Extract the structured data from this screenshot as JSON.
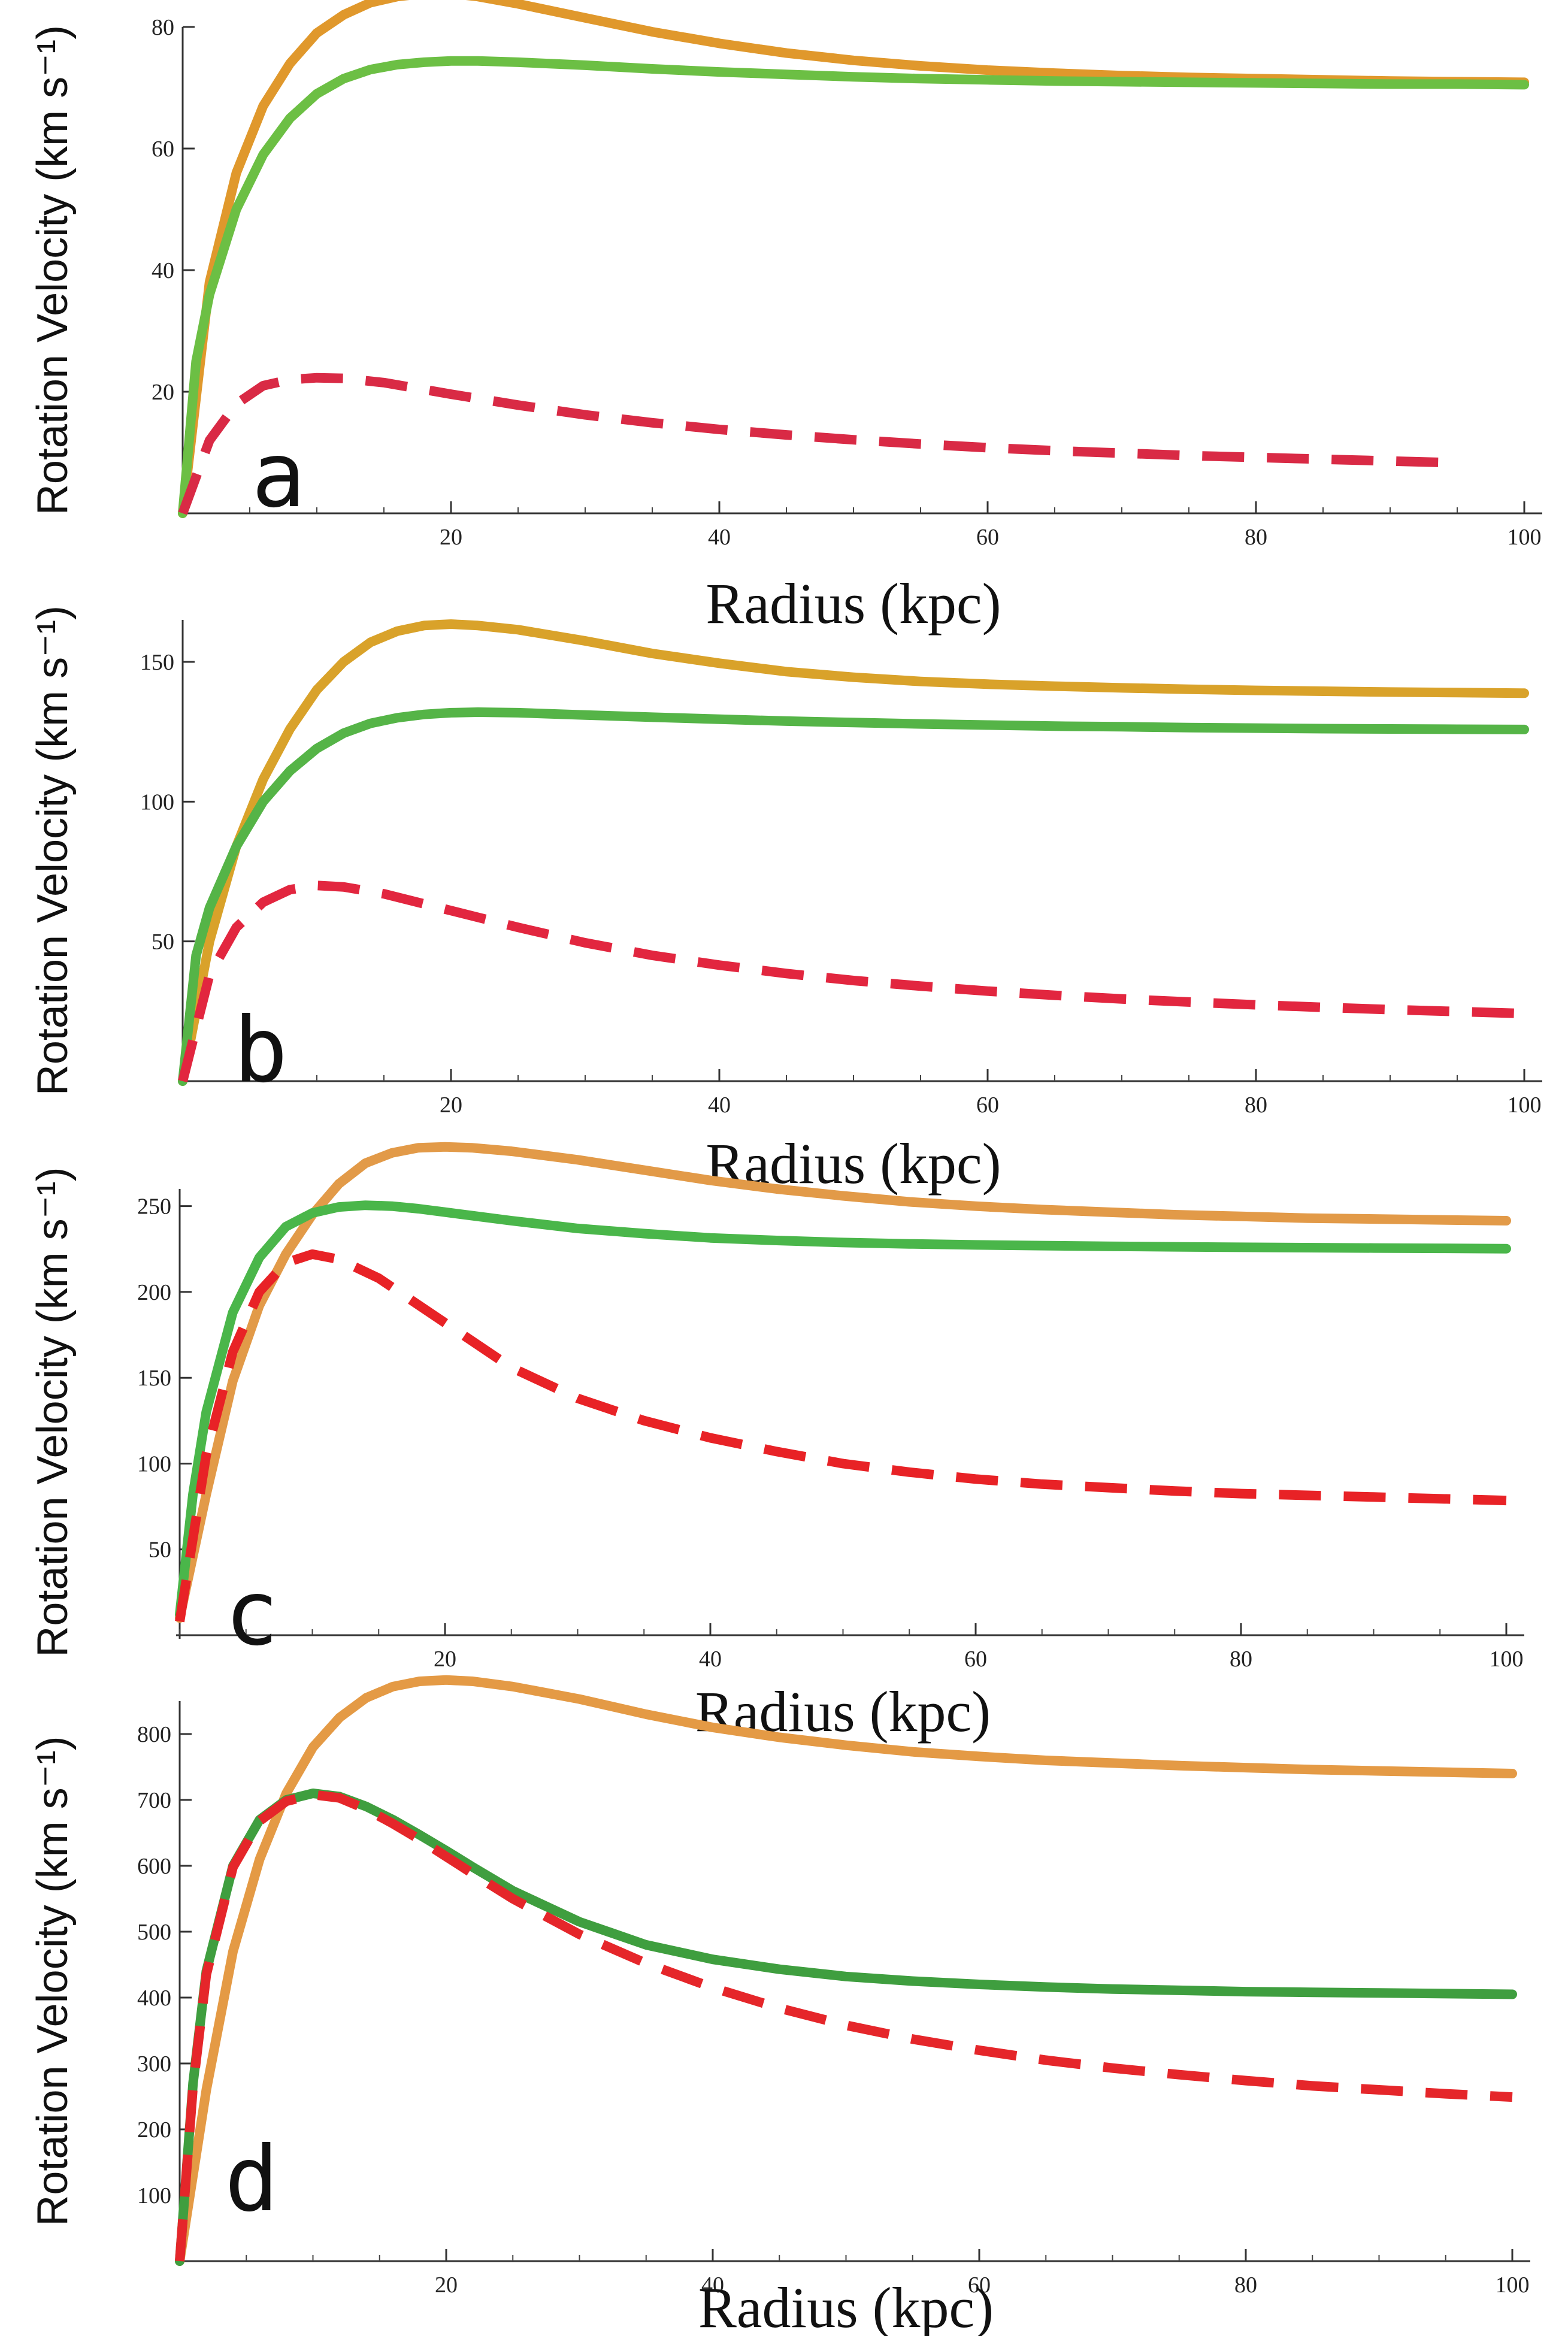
{
  "chart_data": [
    {
      "type": "line",
      "panel_label": "a",
      "xlabel": "Radius (kpc)",
      "ylabel": "Rotation Velocity (km s⁻¹)",
      "xlim": [
        0,
        100
      ],
      "ylim": [
        0,
        80
      ],
      "xticks": [
        20,
        40,
        60,
        80,
        100
      ],
      "yticks": [
        20,
        40,
        60,
        80
      ],
      "grid": false,
      "series": [
        {
          "color": "#e0982c",
          "style": "solid",
          "x": [
            0,
            2,
            4,
            6,
            8,
            10,
            12,
            14,
            16,
            18,
            20,
            22,
            25,
            30,
            35,
            40,
            45,
            50,
            55,
            60,
            65,
            70,
            75,
            80,
            85,
            90,
            95,
            100
          ],
          "y": [
            0,
            38,
            56,
            67,
            74,
            79,
            82,
            84,
            85,
            85.5,
            85.5,
            85,
            83.8,
            81.5,
            79.2,
            77.3,
            75.7,
            74.5,
            73.6,
            72.9,
            72.4,
            72.0,
            71.7,
            71.5,
            71.3,
            71.1,
            71.0,
            70.9
          ]
        },
        {
          "color": "#6cbf44",
          "style": "solid",
          "x": [
            0,
            1,
            2,
            4,
            6,
            8,
            10,
            12,
            14,
            16,
            18,
            20,
            22,
            25,
            30,
            35,
            40,
            45,
            50,
            55,
            60,
            65,
            70,
            75,
            80,
            85,
            90,
            95,
            100
          ],
          "y": [
            0,
            25,
            36,
            50,
            59,
            65,
            69,
            71.5,
            73,
            73.8,
            74.2,
            74.4,
            74.4,
            74.2,
            73.7,
            73.1,
            72.6,
            72.2,
            71.8,
            71.5,
            71.3,
            71.1,
            71.0,
            70.9,
            70.8,
            70.7,
            70.6,
            70.6,
            70.5
          ]
        },
        {
          "color": "#d92a45",
          "style": "dashed",
          "x": [
            0,
            2,
            4,
            6,
            8,
            10,
            12,
            15,
            20,
            25,
            30,
            35,
            40,
            45,
            50,
            55,
            60,
            65,
            70,
            75,
            80,
            85,
            90,
            95
          ],
          "y": [
            0,
            12,
            18,
            21,
            22,
            22.3,
            22.2,
            21.5,
            19.6,
            17.8,
            16.2,
            14.9,
            13.8,
            12.9,
            12.1,
            11.4,
            10.8,
            10.3,
            9.9,
            9.5,
            9.2,
            8.9,
            8.6,
            8.3
          ]
        }
      ]
    },
    {
      "type": "line",
      "panel_label": "b",
      "xlabel": "Radius (kpc)",
      "ylabel": "Rotation Velocity (km s⁻¹)",
      "xlim": [
        0,
        100
      ],
      "ylim": [
        0,
        165
      ],
      "xticks": [
        20,
        40,
        60,
        80,
        100
      ],
      "yticks": [
        50,
        100,
        150
      ],
      "grid": false,
      "series": [
        {
          "color": "#d9a22a",
          "style": "solid",
          "x": [
            0,
            2,
            4,
            6,
            8,
            10,
            12,
            14,
            16,
            18,
            20,
            22,
            25,
            30,
            35,
            40,
            45,
            50,
            55,
            60,
            65,
            70,
            75,
            80,
            85,
            90,
            95,
            100
          ],
          "y": [
            0,
            50,
            84,
            108,
            126,
            140,
            150,
            157,
            161,
            163,
            163.5,
            163,
            161.5,
            157.5,
            153,
            149.5,
            146.5,
            144.5,
            143,
            142,
            141.3,
            140.7,
            140.2,
            139.8,
            139.5,
            139.2,
            139,
            138.8
          ]
        },
        {
          "color": "#55b447",
          "style": "solid",
          "x": [
            0,
            1,
            2,
            4,
            6,
            8,
            10,
            12,
            14,
            16,
            18,
            20,
            22,
            25,
            30,
            35,
            40,
            45,
            50,
            55,
            60,
            65,
            70,
            75,
            80,
            85,
            90,
            95,
            100
          ],
          "y": [
            0,
            45,
            62,
            84,
            100,
            111,
            119,
            124.5,
            128,
            130,
            131.2,
            131.8,
            132,
            131.8,
            131,
            130.2,
            129.5,
            128.8,
            128.3,
            127.8,
            127.4,
            127,
            126.8,
            126.5,
            126.3,
            126.1,
            126,
            125.9,
            125.8
          ]
        },
        {
          "color": "#e2263f",
          "style": "dashed",
          "x": [
            0,
            2,
            4,
            6,
            8,
            10,
            12,
            15,
            20,
            25,
            30,
            35,
            40,
            45,
            50,
            55,
            60,
            65,
            70,
            75,
            80,
            85,
            90,
            95,
            100
          ],
          "y": [
            0,
            38,
            55,
            64,
            68.5,
            70,
            69.5,
            67,
            61,
            55,
            49.5,
            45,
            41.5,
            38.5,
            36,
            34,
            32.2,
            30.7,
            29.4,
            28.3,
            27.3,
            26.4,
            25.6,
            24.9,
            24.2
          ]
        }
      ]
    },
    {
      "type": "line",
      "panel_label": "c",
      "xlabel": "Radius (kpc)",
      "ylabel": "Rotation Velocity (km s⁻¹)",
      "xlim": [
        0,
        100
      ],
      "ylim": [
        0,
        260
      ],
      "xticks": [
        20,
        40,
        60,
        80,
        100
      ],
      "yticks": [
        50,
        100,
        150,
        200,
        250
      ],
      "grid": false,
      "series": [
        {
          "color": "#e29a48",
          "style": "solid",
          "x": [
            0,
            2,
            4,
            6,
            8,
            10,
            12,
            14,
            16,
            18,
            20,
            22,
            25,
            30,
            35,
            40,
            45,
            50,
            55,
            60,
            65,
            70,
            75,
            80,
            85,
            90,
            95,
            100
          ],
          "y": [
            10,
            82,
            148,
            192,
            222,
            245,
            263,
            275,
            281,
            284,
            284.5,
            284,
            282,
            277,
            271,
            265,
            260,
            256,
            252.5,
            250,
            248,
            246.5,
            245,
            244,
            243,
            242.5,
            242,
            241.5
          ]
        },
        {
          "color": "#4ab64a",
          "style": "solid",
          "x": [
            0,
            1,
            2,
            4,
            6,
            8,
            10,
            12,
            14,
            16,
            18,
            20,
            22,
            25,
            30,
            35,
            40,
            45,
            50,
            55,
            60,
            65,
            70,
            75,
            80,
            85,
            90,
            95,
            100
          ],
          "y": [
            12,
            82,
            130,
            188,
            220,
            238,
            246,
            249.5,
            250.5,
            250,
            248.5,
            246.5,
            244.5,
            241.5,
            237,
            234,
            231.5,
            230,
            228.8,
            228,
            227.4,
            227,
            226.6,
            226.3,
            226,
            225.8,
            225.6,
            225.4,
            225.2
          ]
        },
        {
          "color": "#e82226",
          "style": "dashed",
          "x": [
            0,
            2,
            4,
            6,
            8,
            10,
            12,
            15,
            20,
            25,
            30,
            35,
            40,
            45,
            50,
            55,
            60,
            65,
            70,
            75,
            80,
            85,
            90,
            95,
            100
          ],
          "y": [
            8,
            105,
            165,
            200,
            217,
            222,
            219,
            208,
            182,
            156,
            138,
            125,
            115,
            107,
            100,
            95,
            91,
            88,
            86,
            84,
            82.5,
            81.5,
            80.5,
            79.5,
            78.5
          ]
        }
      ]
    },
    {
      "type": "line",
      "panel_label": "d",
      "xlabel": "Radius (kpc)",
      "ylabel": "Rotation Velocity (km s⁻¹)",
      "xlim": [
        0,
        100
      ],
      "ylim": [
        0,
        850
      ],
      "xticks": [
        20,
        40,
        60,
        80,
        100
      ],
      "yticks": [
        100,
        200,
        300,
        400,
        500,
        600,
        700,
        800
      ],
      "grid": false,
      "series": [
        {
          "color": "#e49a45",
          "style": "solid",
          "x": [
            0,
            2,
            4,
            6,
            8,
            10,
            12,
            14,
            16,
            18,
            20,
            22,
            25,
            30,
            35,
            40,
            45,
            50,
            55,
            60,
            65,
            70,
            75,
            80,
            85,
            90,
            95,
            100
          ],
          "y": [
            0,
            260,
            470,
            610,
            710,
            780,
            825,
            855,
            872,
            880,
            882,
            880,
            872,
            853,
            830,
            810,
            795,
            783,
            773,
            766,
            760,
            756,
            752,
            749,
            746,
            744,
            742,
            740
          ]
        },
        {
          "color": "#3f9e3f",
          "style": "solid",
          "x": [
            0,
            1,
            2,
            4,
            6,
            8,
            10,
            12,
            14,
            16,
            18,
            20,
            22,
            25,
            30,
            35,
            40,
            45,
            50,
            55,
            60,
            65,
            70,
            75,
            80,
            85,
            90,
            95,
            100
          ],
          "y": [
            0,
            270,
            440,
            600,
            670,
            700,
            710,
            705,
            690,
            670,
            647,
            623,
            598,
            562,
            515,
            480,
            458,
            443,
            432,
            425,
            420,
            416,
            413,
            411,
            409,
            408,
            407,
            406,
            405
          ]
        },
        {
          "color": "#e5262a",
          "style": "dashed",
          "x": [
            0,
            1,
            2,
            4,
            6,
            8,
            10,
            12,
            14,
            16,
            18,
            20,
            22,
            25,
            30,
            35,
            40,
            45,
            50,
            55,
            60,
            65,
            70,
            75,
            80,
            85,
            90,
            95,
            100
          ],
          "y": [
            0,
            265,
            435,
            598,
            668,
            698,
            708,
            703,
            686,
            664,
            640,
            614,
            588,
            550,
            496,
            452,
            415,
            384,
            358,
            337,
            320,
            305,
            293,
            283,
            274,
            266,
            260,
            254,
            249
          ]
        }
      ]
    }
  ]
}
